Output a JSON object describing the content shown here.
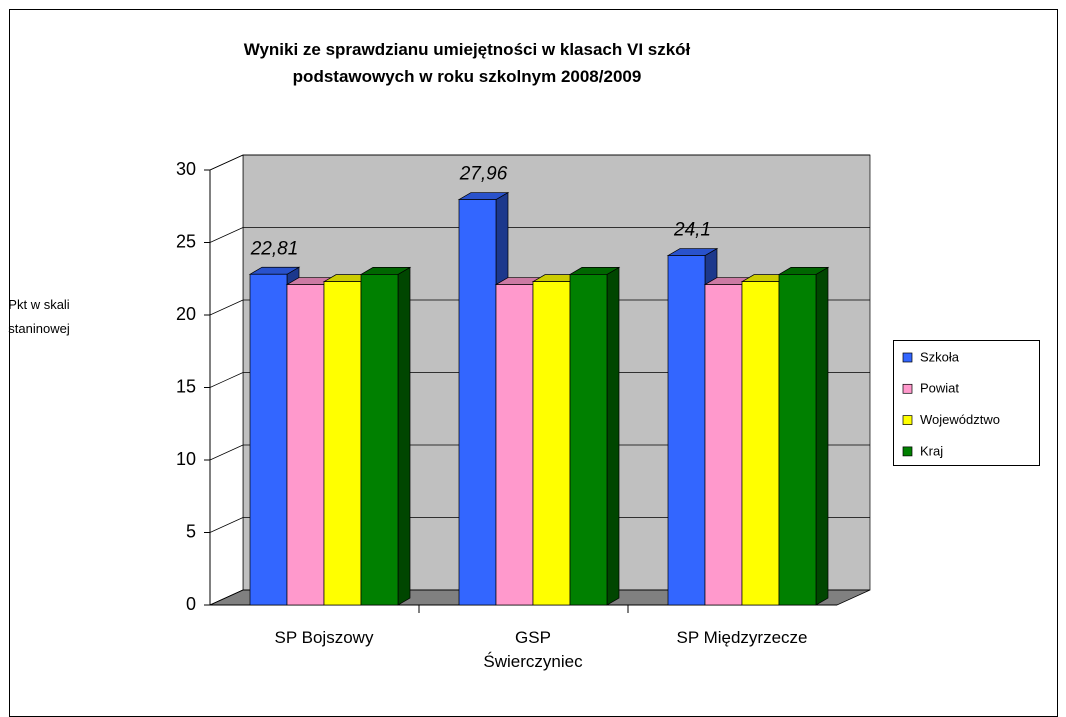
{
  "chart_data": {
    "type": "bar3d",
    "title": "Wyniki ze sprawdzianu umiejętności w klasach VI szkół\npodstawowych w roku szkolnym 2008/2009",
    "y_label": "Pkt w skali\nstaninowej",
    "categories": [
      "SP Bojszowy",
      "GSP\nŚwierczyniec",
      "SP Międzyrzecze"
    ],
    "series": [
      {
        "name": "Szkoła",
        "color": "#3366ff",
        "values": [
          22.81,
          27.96,
          24.1
        ],
        "value_labels": [
          "22,81",
          "27,96",
          "24,1"
        ]
      },
      {
        "name": "Powiat",
        "color": "#ff99cc",
        "values": [
          22.1,
          22.1,
          22.1
        ]
      },
      {
        "name": "Województwo",
        "color": "#ffff00",
        "values": [
          22.3,
          22.3,
          22.3
        ]
      },
      {
        "name": "Kraj",
        "color": "#008000",
        "values": [
          22.8,
          22.8,
          22.8
        ]
      }
    ],
    "ylim": [
      0,
      30
    ],
    "yticks": [
      0,
      5,
      10,
      15,
      20,
      25,
      30
    ],
    "grid": true,
    "legend": "right"
  }
}
